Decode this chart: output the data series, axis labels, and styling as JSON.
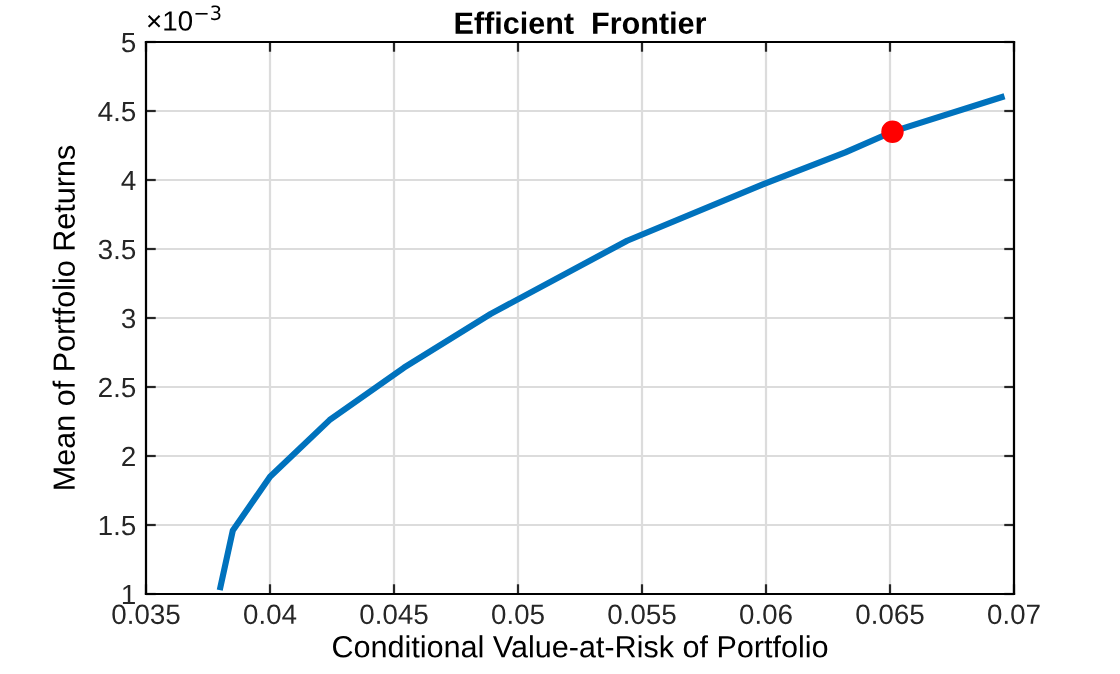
{
  "chart_data": {
    "type": "line",
    "title": "Efficient  Frontier",
    "xlabel": "Conditional Value-at-Risk of Portfolio",
    "ylabel": "Mean of Portfolio Returns",
    "annotations": [
      "×10$^{−3}$"
    ],
    "series": [
      {
        "color": "#0072bd",
        "x": [
          0.038,
          0.0385,
          0.04,
          0.0424,
          0.0454,
          0.0489,
          0.0544,
          0.0599,
          0.0632,
          0.0651,
          0.0695
        ],
        "values": [
          1.05,
          1.46,
          1.85,
          2.26,
          2.64,
          3.03,
          3.56,
          3.97,
          4.2,
          4.35,
          4.6
        ]
      },
      {
        "type": "scatter",
        "color": "#ff0000",
        "marker": "circle",
        "x": [
          0.0651
        ],
        "values": [
          4.35
        ]
      }
    ],
    "xlim": [
      0.035,
      0.07
    ],
    "xticks": [
      0.035,
      0.04,
      0.045,
      0.05,
      0.055,
      0.06,
      0.065,
      0.07
    ],
    "ylim": [
      1,
      5
    ],
    "yticks": [
      1,
      1.5,
      2,
      2.5,
      3,
      3.5,
      4,
      4.5,
      5
    ],
    "grid": true
  }
}
